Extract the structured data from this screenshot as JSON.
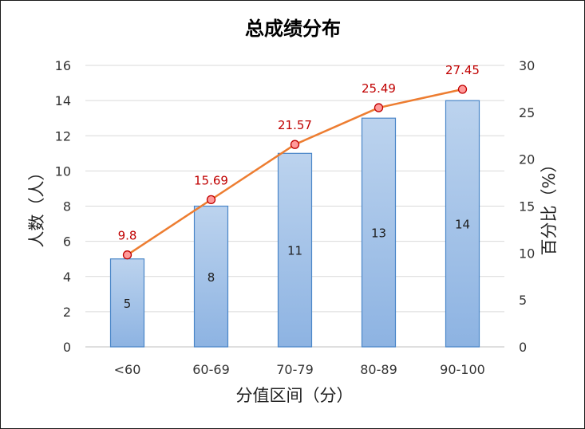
{
  "chart_data": {
    "type": "bar",
    "title": "总成绩分布",
    "xlabel": "分值区间（分）",
    "ylabel": "人数（人）",
    "y2label": "百分比（%）",
    "categories": [
      "<60",
      "60-69",
      "70-79",
      "80-89",
      "90-100"
    ],
    "series": [
      {
        "type": "bar",
        "values": [
          5,
          8,
          11,
          13,
          14
        ]
      },
      {
        "type": "line",
        "axis": "right",
        "values": [
          9.8,
          15.69,
          21.57,
          25.49,
          27.45
        ]
      }
    ],
    "ylim": [
      0,
      16
    ],
    "yticks": [
      0,
      2,
      4,
      6,
      8,
      10,
      12,
      14,
      16
    ],
    "y2lim": [
      0,
      30
    ],
    "y2ticks": [
      0,
      5,
      10,
      15,
      20,
      25,
      30
    ],
    "grid": true,
    "legend": "none",
    "colors": {
      "bar_top": "#bcd3ee",
      "bar_bottom": "#8db3e2",
      "bar_edge": "#4a86c8",
      "line": "#ed7d31",
      "marker_fill": "#ff9a9a",
      "marker_edge": "#c00000",
      "line_label": "#c00000",
      "grid": "#d9d9d9"
    }
  }
}
